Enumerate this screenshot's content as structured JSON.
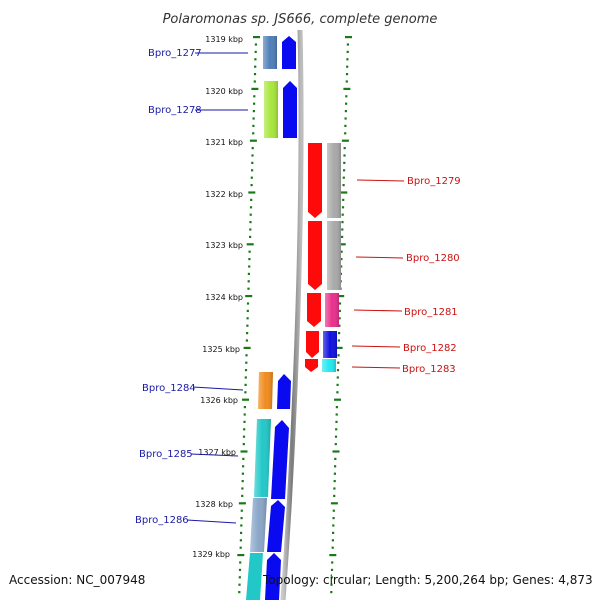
{
  "title": "Polaromonas sp. JS666, complete genome",
  "accession_text": "Accession: NC_007948",
  "topology_text": "Topology: circular; Length: 5,200,264 bp; Genes: 4,873",
  "kbp_labels": [
    "1319 kbp",
    "1320 kbp",
    "1321 kbp",
    "1322 kbp",
    "1323 kbp",
    "1324 kbp",
    "1325 kbp",
    "1326 kbp",
    "1327 kbp",
    "1328 kbp",
    "1329 kbp"
  ],
  "left_genes": [
    {
      "label": "Bpro_1277",
      "color": "#4f7fb8"
    },
    {
      "label": "Bpro_1278",
      "color": "#a8e63c"
    },
    {
      "label": "Bpro_1284",
      "color": "#f08b1d"
    },
    {
      "label": "Bpro_1285",
      "color": "#22c8c8"
    },
    {
      "label": "Bpro_1286",
      "color": "#8aa6c8"
    }
  ],
  "right_genes": [
    {
      "label": "Bpro_1279",
      "color": "#a9a9a9"
    },
    {
      "label": "Bpro_1280",
      "color": "#a9a9a9"
    },
    {
      "label": "Bpro_1281",
      "color": "#e8308c"
    },
    {
      "label": "Bpro_1282",
      "color": "#1010e0"
    },
    {
      "label": "Bpro_1283",
      "color": "#22e8f0"
    }
  ],
  "colors": {
    "forward_strand": "#0a0af0",
    "reverse_strand": "#ff0a0a",
    "left_label": "#1a1aa6",
    "right_label": "#cc1111",
    "tick": "#1a7a1a",
    "backbone": "#8a8a8a"
  }
}
